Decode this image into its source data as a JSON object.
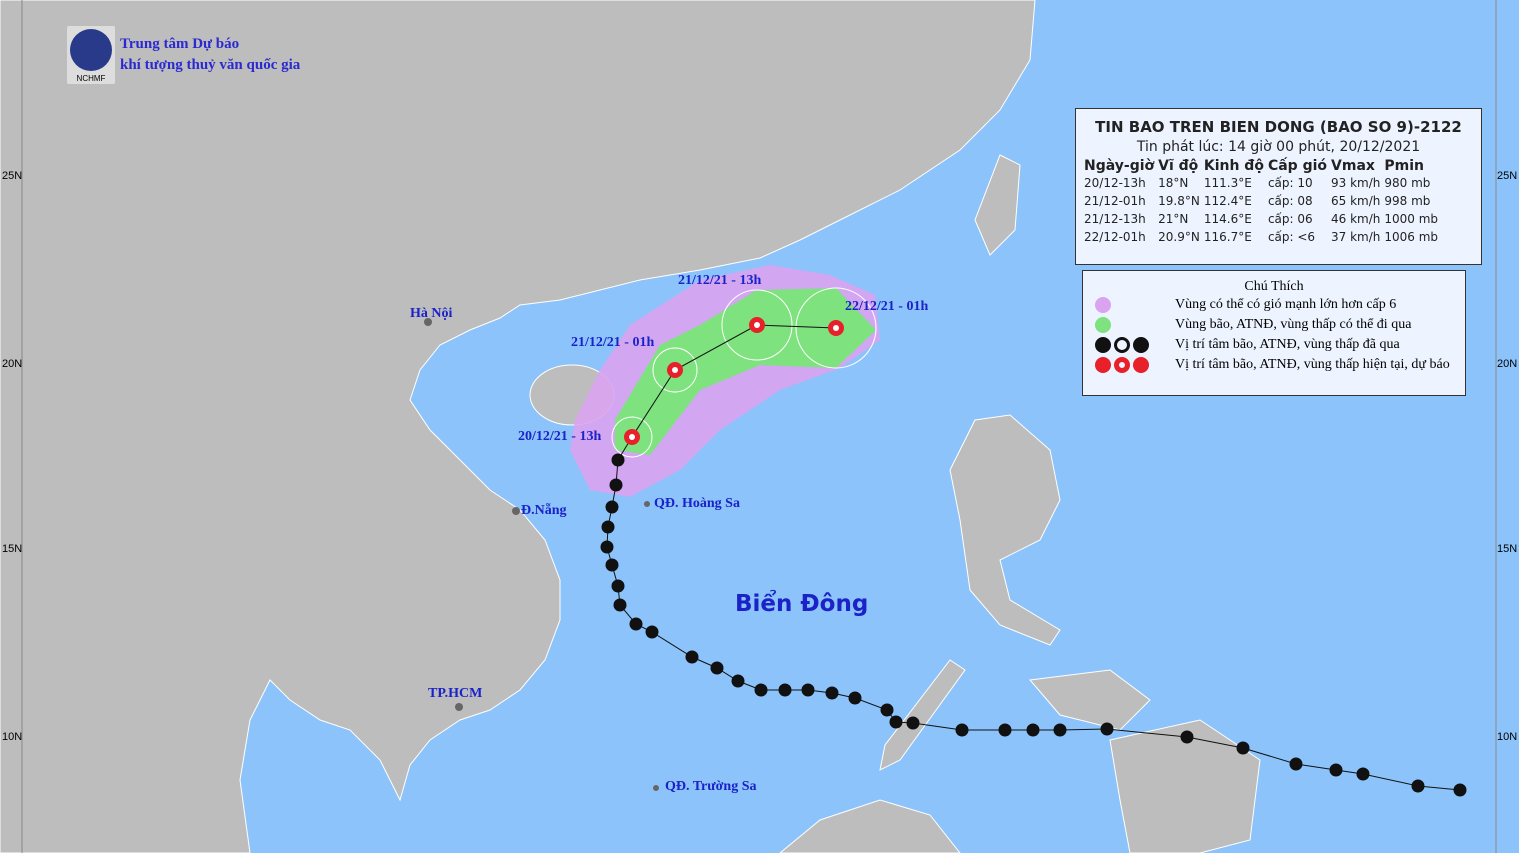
{
  "header": {
    "org_line1": "Trung tâm Dự báo",
    "org_line2": "khí tượng thuỷ văn quốc gia",
    "logo_text": "NCHMF"
  },
  "info": {
    "title": "TIN BAO TREN BIEN DONG (BAO SO 9)-2122",
    "issued": "Tin phát lúc: 14 giờ 00 phút, 20/12/2021",
    "columns": [
      "Ngày-giờ",
      "Vĩ độ",
      "Kinh độ",
      "Cấp gió",
      "Vmax",
      "Pmin"
    ],
    "rows": [
      [
        "20/12-13h",
        "18°N",
        "111.3°E",
        "cấp: 10",
        "93 km/h",
        "980 mb"
      ],
      [
        "21/12-01h",
        "19.8°N",
        "112.4°E",
        "cấp: 08",
        "65 km/h",
        "998 mb"
      ],
      [
        "21/12-13h",
        "21°N",
        "114.6°E",
        "cấp: 06",
        "46 km/h",
        "1000 mb"
      ],
      [
        "22/12-01h",
        "20.9°N",
        "116.7°E",
        "cấp: <6",
        "37 km/h",
        "1006 mb"
      ]
    ]
  },
  "legend": {
    "title": "Chú Thích",
    "items": [
      {
        "label": "Vùng có thể có gió mạnh lớn hơn cấp 6",
        "color": "#d9a3f0"
      },
      {
        "label": "Vùng bão, ATNĐ, vùng thấp có thể đi qua",
        "color": "#7ee27e"
      },
      {
        "label": "Vị trí tâm bão, ATNĐ, vùng thấp đã qua",
        "color": "#111111"
      },
      {
        "label": "Vị trí tâm bão, ATNĐ, vùng thấp hiện tại, dự báo",
        "color": "#e8202a"
      }
    ]
  },
  "lat_ticks": [
    "25N",
    "20N",
    "15N",
    "10N"
  ],
  "forecast_labels": [
    "20/12/21 - 13h",
    "21/12/21 - 01h",
    "21/12/21 - 13h",
    "22/12/21 - 01h"
  ],
  "places": {
    "hanoi": "Hà Nội",
    "danang": "Đ.Nẵng",
    "hoangsa": "QĐ. Hoàng Sa",
    "hcm": "TP.HCM",
    "truongsa": "QĐ. Trường Sa",
    "sea": "Biển Đông"
  },
  "colors": {
    "sea": "#8cc3fb",
    "land": "#bdbdbd",
    "cone": "#d9a3f0",
    "green": "#7ee27e",
    "label": "#1a22c8"
  }
}
